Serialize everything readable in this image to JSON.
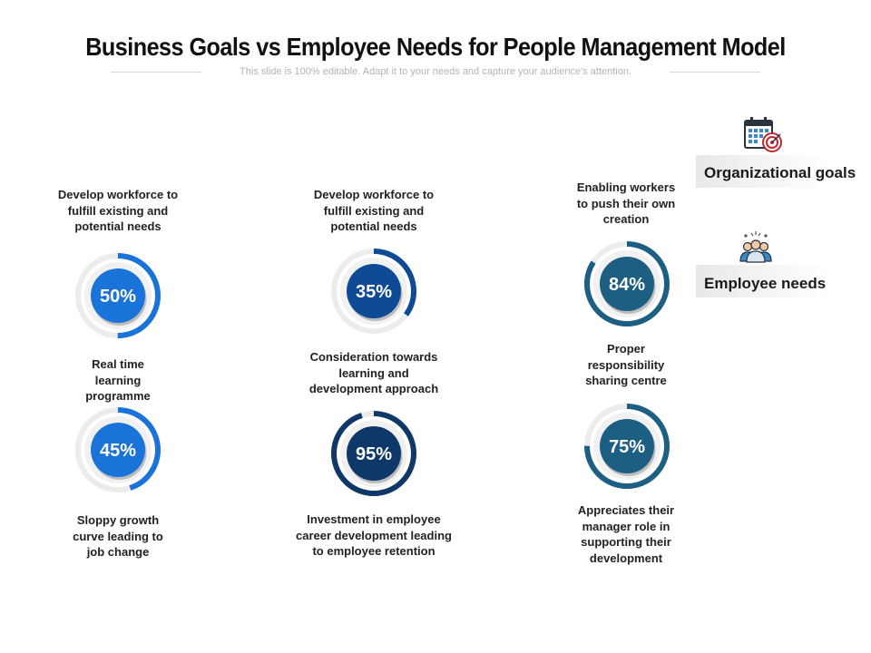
{
  "header": {
    "title": "Business Goals vs Employee Needs for People Management Model",
    "subtitle": "This slide is 100% editable. Adapt it to your needs and capture your audience's attention."
  },
  "legend": {
    "org_goals_label": "Organizational goals",
    "employee_needs_label": "Employee needs",
    "org_goals_icon": "calendar-target-icon",
    "employee_needs_icon": "team-people-icon"
  },
  "colors": {
    "blue": "#1a73d9",
    "dark_blue": "#0f4a96",
    "navy": "#0e3868",
    "teal": "#1d5f82"
  },
  "chart_data": {
    "type": "gauge",
    "gauges": [
      {
        "value": 50,
        "label": "50%",
        "top_text": [
          "Develop workforce to",
          "fulfill existing and",
          "potential needs"
        ],
        "bottom_text": [
          "Real time",
          "learning",
          "programme"
        ]
      },
      {
        "value": 45,
        "label": "45%",
        "top_text": [
          "Real time",
          "learning",
          "programme"
        ],
        "bottom_text": [
          "Sloppy growth",
          "curve leading to",
          "job change"
        ]
      },
      {
        "value": 35,
        "label": "35%",
        "top_text": [
          "Develop workforce to",
          "fulfill existing and",
          "potential needs"
        ],
        "bottom_text": [
          "Consideration towards",
          "learning and",
          "development  approach"
        ]
      },
      {
        "value": 95,
        "label": "95%",
        "top_text": [
          "Consideration towards",
          "learning and",
          "development  approach"
        ],
        "bottom_text": [
          "Investment in employee",
          "career development leading",
          "to employee retention"
        ]
      },
      {
        "value": 84,
        "label": "84%",
        "top_text": [
          "Enabling workers",
          "to push their own",
          "creation"
        ],
        "bottom_text": [
          "Proper",
          "responsibility",
          "sharing centre"
        ]
      },
      {
        "value": 75,
        "label": "75%",
        "top_text": [
          "Proper",
          "responsibility",
          "sharing centre"
        ],
        "bottom_text": [
          "Appreciates their",
          "manager role in",
          "supporting their",
          "development"
        ]
      }
    ]
  }
}
